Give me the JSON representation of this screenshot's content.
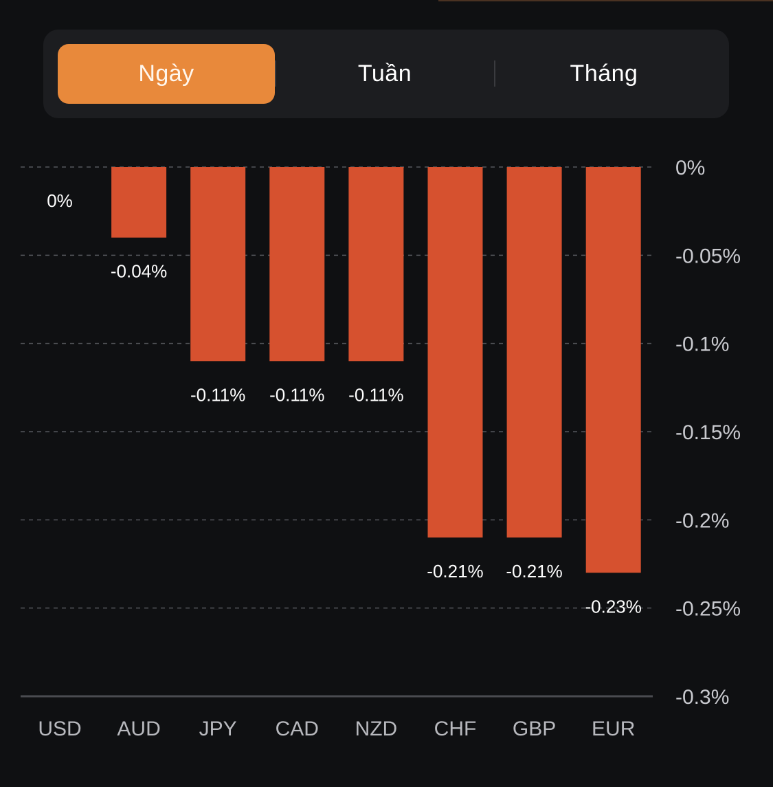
{
  "period_selector": {
    "tabs": [
      {
        "label": "Ngày",
        "active": true
      },
      {
        "label": "Tuần",
        "active": false
      },
      {
        "label": "Tháng",
        "active": false
      }
    ]
  },
  "colors": {
    "background": "#0f1012",
    "bar": "#d6512f",
    "active_tab": "#e8893b",
    "tab_bar": "#1c1d20"
  },
  "chart_data": {
    "type": "bar",
    "title": "",
    "xlabel": "",
    "ylabel": "",
    "categories": [
      "USD",
      "AUD",
      "JPY",
      "CAD",
      "NZD",
      "CHF",
      "GBP",
      "EUR"
    ],
    "values": [
      0,
      -0.04,
      -0.11,
      -0.11,
      -0.11,
      -0.21,
      -0.21,
      -0.23
    ],
    "value_labels": [
      "0%",
      "-0.04%",
      "-0.11%",
      "-0.11%",
      "-0.11%",
      "-0.21%",
      "-0.21%",
      "-0.23%"
    ],
    "unit": "%",
    "ylim": [
      -0.3,
      0
    ],
    "yticks": [
      0,
      -0.05,
      -0.1,
      -0.15,
      -0.2,
      -0.25,
      -0.3
    ],
    "ytick_labels": [
      "0%",
      "-0.05%",
      "-0.1%",
      "-0.15%",
      "-0.2%",
      "-0.25%",
      "-0.3%"
    ],
    "y_axis_side": "right",
    "grid": true,
    "grid_style": "dashed",
    "legend": "none"
  }
}
